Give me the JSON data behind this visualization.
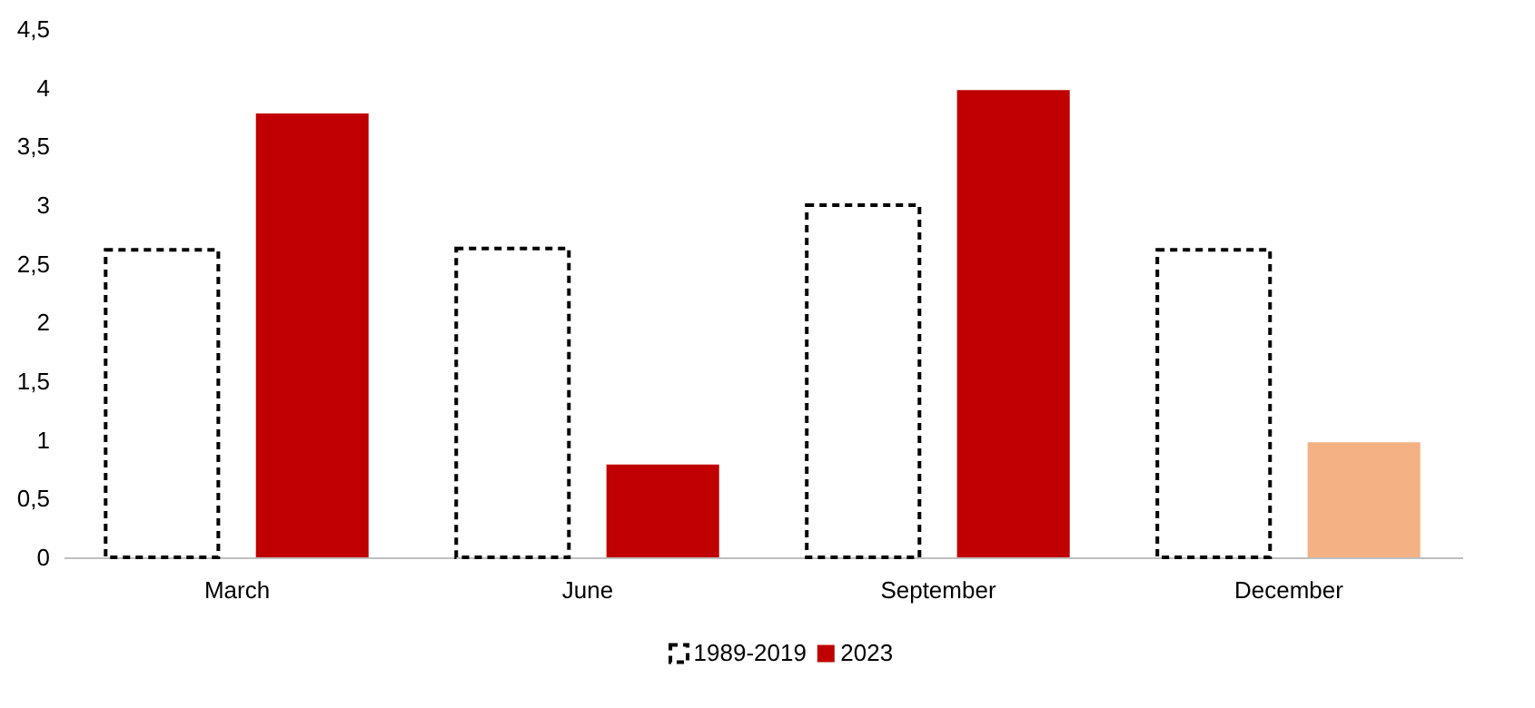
{
  "chart_data": {
    "type": "bar",
    "categories": [
      "March",
      "June",
      "September",
      "December"
    ],
    "series": [
      {
        "name": "1989-2019",
        "color": "#000000",
        "line_style": "dashed",
        "values": [
          2.62,
          2.63,
          3.0,
          2.62
        ]
      },
      {
        "name": "2023",
        "color": "#c00000",
        "colors": [
          "#c00000",
          "#c00000",
          "#c00000",
          "#f4b183"
        ],
        "values": [
          3.78,
          0.79,
          3.98,
          0.98
        ]
      }
    ],
    "ylim": [
      0,
      4.5
    ],
    "yticks": [
      0,
      {
        "value": 0.5,
        "label": "0,5"
      },
      1,
      {
        "value": 1.5,
        "label": "1,5"
      },
      2,
      {
        "value": 2.5,
        "label": "2,5"
      },
      3,
      {
        "value": 3.5,
        "label": "3,5"
      },
      4,
      {
        "value": 4.5,
        "label": "4,5"
      }
    ],
    "grid": false,
    "legend": "bottom"
  }
}
